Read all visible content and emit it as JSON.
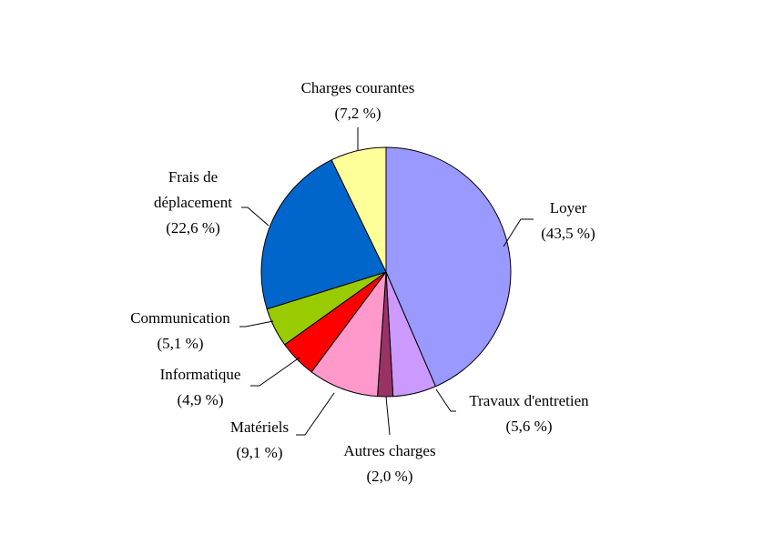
{
  "chart_data": {
    "type": "pie",
    "title": "",
    "slices": [
      {
        "name": "Loyer",
        "value": 43.5,
        "label": "(43,5 %)",
        "color": "#9999ff"
      },
      {
        "name": "Travaux d'entretien",
        "value": 5.6,
        "label": "(5,6 %)",
        "color": "#cc99ff"
      },
      {
        "name": "Autres charges",
        "value": 2.0,
        "label": "(2,0 %)",
        "color": "#993366"
      },
      {
        "name": "Matériels",
        "value": 9.1,
        "label": "(9,1 %)",
        "color": "#ff99cc"
      },
      {
        "name": "Informatique",
        "value": 4.9,
        "label": "(4,9 %)",
        "color": "#ff0000"
      },
      {
        "name": "Communication",
        "value": 5.1,
        "label": "(5,1 %)",
        "color": "#99cc00"
      },
      {
        "name": "Frais de déplacement",
        "name_lines": [
          "Frais de",
          "déplacement"
        ],
        "value": 22.6,
        "label": "(22,6 %)",
        "color": "#0066cc"
      },
      {
        "name": "Charges courantes",
        "value": 7.2,
        "label": "(7,2 %)",
        "color": "#ffff99"
      }
    ]
  }
}
